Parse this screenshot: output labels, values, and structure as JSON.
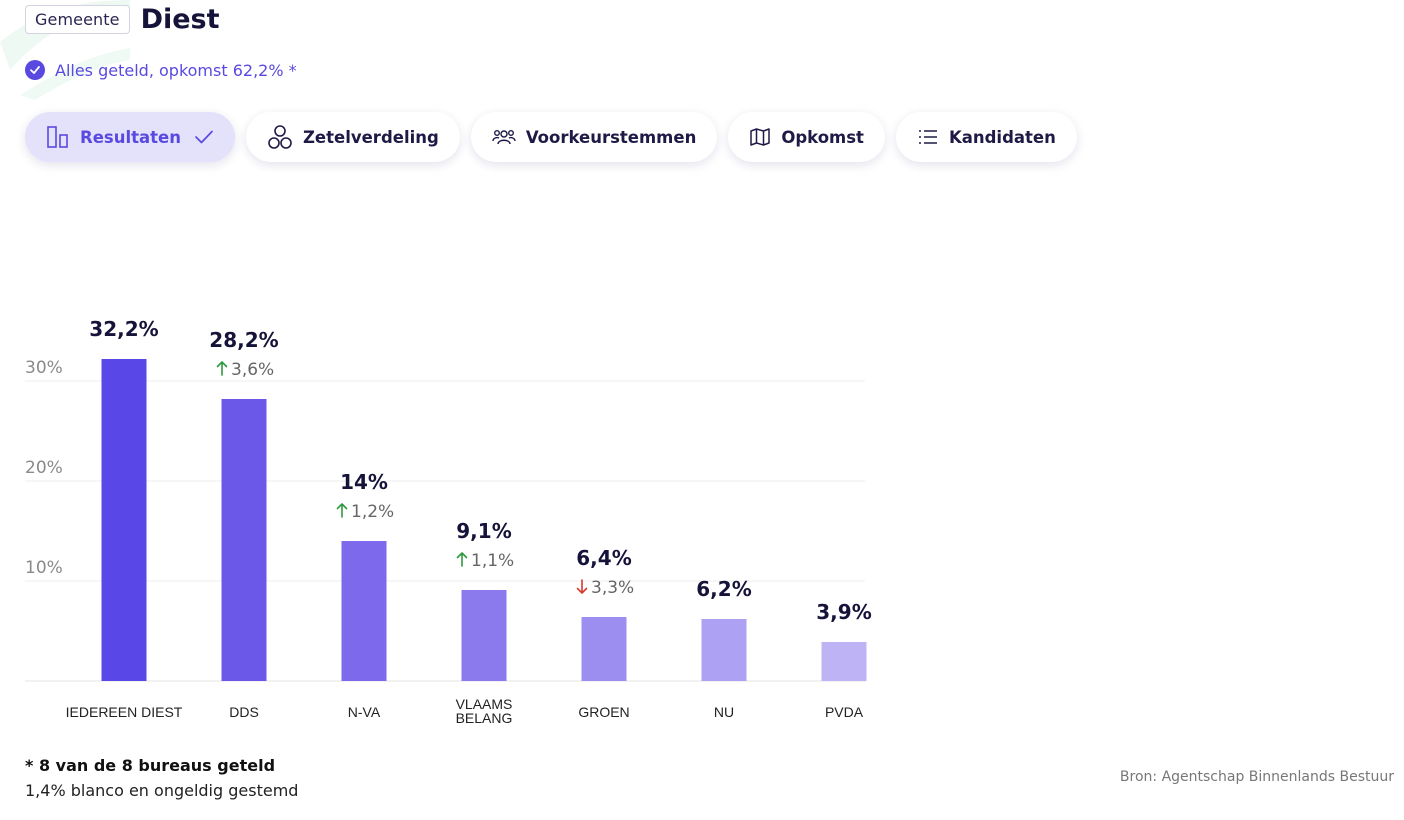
{
  "header": {
    "area_type": "Gemeente",
    "place_name": "Diest"
  },
  "status": {
    "icon": "check-circle-icon",
    "text": "Alles geteld, opkomst 62,2% *"
  },
  "tabs": [
    {
      "label": "Resultaten",
      "icon": "bar-chart-icon",
      "active": true
    },
    {
      "label": "Zetelverdeling",
      "icon": "circles-icon",
      "active": false
    },
    {
      "label": "Voorkeurstemmen",
      "icon": "people-icon",
      "active": false
    },
    {
      "label": "Opkomst",
      "icon": "map-icon",
      "active": false
    },
    {
      "label": "Kandidaten",
      "icon": "list-icon",
      "active": false
    }
  ],
  "colors": {
    "accent": "#5a49e0",
    "bars": [
      "#5a47e8",
      "#6b57e8",
      "#7c69eb",
      "#8b7aee",
      "#9c8df0",
      "#ada1f3",
      "#beb4f5"
    ],
    "up": "#2e9a3f",
    "down": "#d63a2f"
  },
  "chart_data": {
    "type": "bar",
    "categories": [
      "IEDEREEN DIEST",
      "DDS",
      "N-VA",
      "VLAAMS BELANG",
      "GROEN",
      "NU",
      "PVDA"
    ],
    "category_lines": [
      [
        "IEDEREEN DIEST"
      ],
      [
        "DDS"
      ],
      [
        "N-VA"
      ],
      [
        "VLAAMS",
        "BELANG"
      ],
      [
        "GROEN"
      ],
      [
        "NU"
      ],
      [
        "PVDA"
      ]
    ],
    "values": [
      32.2,
      28.2,
      14,
      9.1,
      6.4,
      6.2,
      3.9
    ],
    "value_labels": [
      "32,2%",
      "28,2%",
      "14%",
      "9,1%",
      "6,4%",
      "6,2%",
      "3,9%"
    ],
    "changes": [
      null,
      {
        "direction": "up",
        "label": "3,6%"
      },
      {
        "direction": "up",
        "label": "1,2%"
      },
      {
        "direction": "up",
        "label": "1,1%"
      },
      {
        "direction": "down",
        "label": "3,3%"
      },
      null,
      null
    ],
    "ylim": [
      0,
      30
    ],
    "yticks": [
      10,
      20,
      30
    ],
    "ytick_labels": [
      "10%",
      "20%",
      "30%"
    ],
    "grid": true
  },
  "footnotes": {
    "counted": "* 8 van de 8 bureaus geteld",
    "blank": "1,4% blanco en ongeldig gestemd"
  },
  "source": "Bron: Agentschap Binnenlands Bestuur"
}
